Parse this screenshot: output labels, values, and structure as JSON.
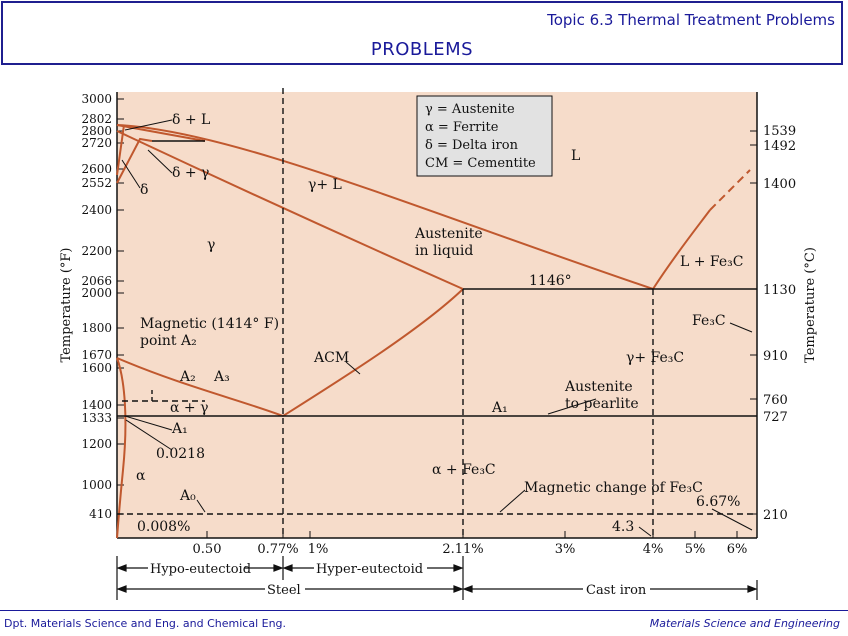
{
  "header": {
    "topic": "Topic 6.3 Thermal Treatment Problems",
    "title": "PROBLEMS"
  },
  "footer": {
    "left": "Dpt. Materials Science and Eng. and Chemical Eng.",
    "right": "Materials Science and Engineering"
  },
  "colors": {
    "plot_bg": "#f6dcca",
    "curve": "#c0582e",
    "ink": "#111111",
    "accent": "#1a1a9a"
  },
  "diagram": {
    "y_left_label": "Temperature (°F)",
    "y_right_label": "Temperature (°C)",
    "f_ticks": [
      "3000",
      "2802",
      "2800",
      "2720",
      "2600",
      "2552",
      "2400",
      "2200",
      "2066",
      "2000",
      "1800",
      "1670",
      "1600",
      "1400",
      "1333",
      "1200",
      "1000",
      "410"
    ],
    "c_ticks": [
      "1539",
      "1492",
      "1400",
      "1130",
      "910",
      "760",
      "727",
      "210"
    ],
    "x_ticks": [
      "0.50",
      "0.77%",
      "1%",
      "2.11%",
      "3%",
      "4%",
      "5%",
      "6%"
    ],
    "legend": {
      "line1": "γ = Austenite",
      "line2": "α = Ferrite",
      "line3": "δ = Delta iron",
      "line4": "CM = Cementite"
    },
    "labels": {
      "delta_l": "δ + L",
      "delta_gamma": "δ + γ",
      "delta": "δ",
      "gamma": "γ",
      "gamma_l": "γ+ L",
      "L": "L",
      "austenite_liquid_1": "Austenite",
      "austenite_liquid_2": "in liquid",
      "eutectic_temp": "1146°",
      "l_fe3c": "L + Fe₃C",
      "fe3c": "Fe₃C",
      "gamma_fe3c": "γ+ Fe₃C",
      "magnetic_1": "Magnetic (1414° F)",
      "magnetic_2": "point A₂",
      "acm": "ACM",
      "a2": "A₂",
      "a3": "A₃",
      "alpha_gamma": "α + γ",
      "a1_left": "A₁",
      "a1_right": "A₁",
      "austenite_pearlite_1": "Austenite",
      "austenite_pearlite_2": "to pearlite",
      "c_0218": "0.0218",
      "alpha": "α",
      "alpha_fe3c": "α + Fe₃C",
      "magnetic_change": "Magnetic change of Fe₃C",
      "a0": "A₀",
      "c_008": "0.008%",
      "c_667": "6.67%",
      "c_43": "4.3"
    },
    "ranges": {
      "hypo": "Hypo-eutectoid",
      "hyper": "Hyper-eutectoid",
      "steel": "Steel",
      "cast_iron": "Cast iron"
    }
  }
}
